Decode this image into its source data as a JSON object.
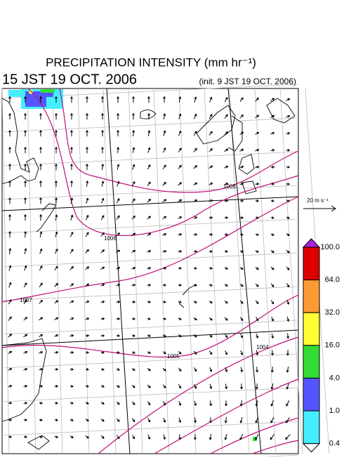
{
  "header": {
    "title": "PRECIPITATION INTENSITY (mm hr⁻¹)",
    "valid_time": "15 JST 19 OCT. 2006",
    "init_time": "(init. 9 JST 19 OCT. 2006)"
  },
  "vector_reference": {
    "label": "20 m s⁻¹"
  },
  "colorbar": {
    "labels": [
      "100.0",
      "64.0",
      "32.0",
      "16.0",
      "4.0",
      "1.0",
      "0.4"
    ],
    "colors": [
      "#dd0000",
      "#ff9933",
      "#ffff33",
      "#33dd33",
      "#5555ff",
      "#44eeff"
    ],
    "over_color": "#aa22dd",
    "under_color": "#ffffff"
  },
  "isobars": {
    "labels": [
      "1008",
      "1006",
      "1007",
      "1005",
      "1004"
    ]
  }
}
